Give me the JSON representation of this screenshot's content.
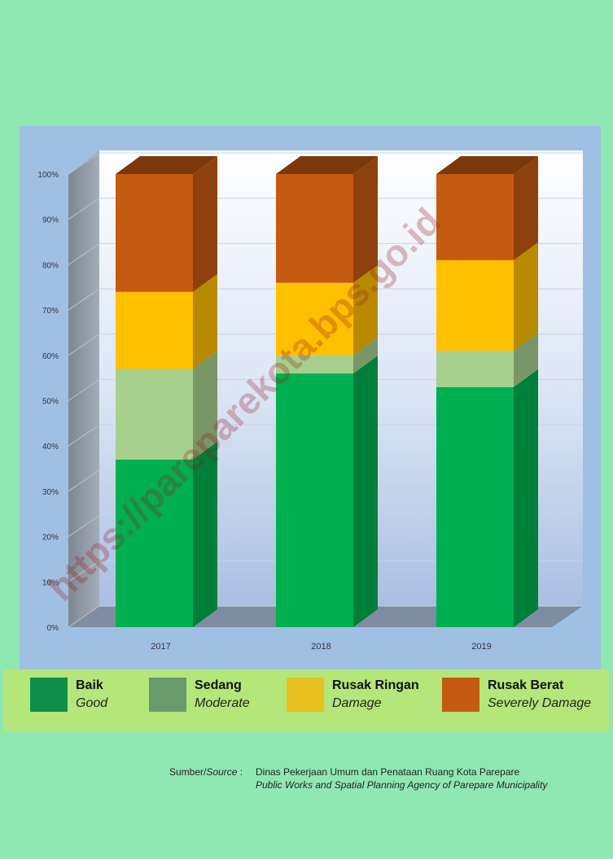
{
  "chart_data": {
    "type": "bar",
    "stacked": true,
    "three_d": true,
    "categories": [
      "2017",
      "2018",
      "2019"
    ],
    "y_tick_labels": [
      "0%",
      "10%",
      "20%",
      "30%",
      "40%",
      "50%",
      "60%",
      "70%",
      "80%",
      "90%",
      "100%"
    ],
    "ylim": [
      0,
      100
    ],
    "grid": true,
    "legend_position": "bottom",
    "series": [
      {
        "name": "Baik",
        "name_en": "Good",
        "color": "#0f8f4a",
        "bar_color": "#00b050",
        "values": [
          37,
          56,
          53
        ]
      },
      {
        "name": "Sedang",
        "name_en": "Moderate",
        "color": "#6a9a6c",
        "bar_color": "#a8d08d",
        "values": [
          20,
          4,
          8
        ]
      },
      {
        "name": "Rusak Ringan",
        "name_en": "Damage",
        "color": "#e8c21e",
        "bar_color": "#ffc000",
        "values": [
          17,
          16,
          20
        ]
      },
      {
        "name": "Rusak Berat",
        "name_en": "Severely Damage",
        "color": "#c55a11",
        "bar_color": "#c55a11",
        "values": [
          26,
          24,
          19
        ]
      }
    ]
  },
  "legend": {
    "items": [
      {
        "label": "Baik",
        "sublabel": "Good",
        "color": "#0f8f4a"
      },
      {
        "label": "Sedang",
        "sublabel": "Moderate",
        "color": "#6a9a6c"
      },
      {
        "label": "Rusak Ringan",
        "sublabel": "Damage",
        "color": "#e8c21e"
      },
      {
        "label": "Rusak Berat",
        "sublabel": "Severely Damage",
        "color": "#c55a11"
      }
    ]
  },
  "source": {
    "label_id": "Sumber/",
    "label_en": "Source",
    "separator": " :",
    "line1": "Dinas Pekerjaan Umum dan Penataan Ruang Kota Parepare",
    "line2": "Public Works and Spatial Planning Agency of Parepare Municipality"
  },
  "watermark": "https://pareparekota.bps.go.id"
}
